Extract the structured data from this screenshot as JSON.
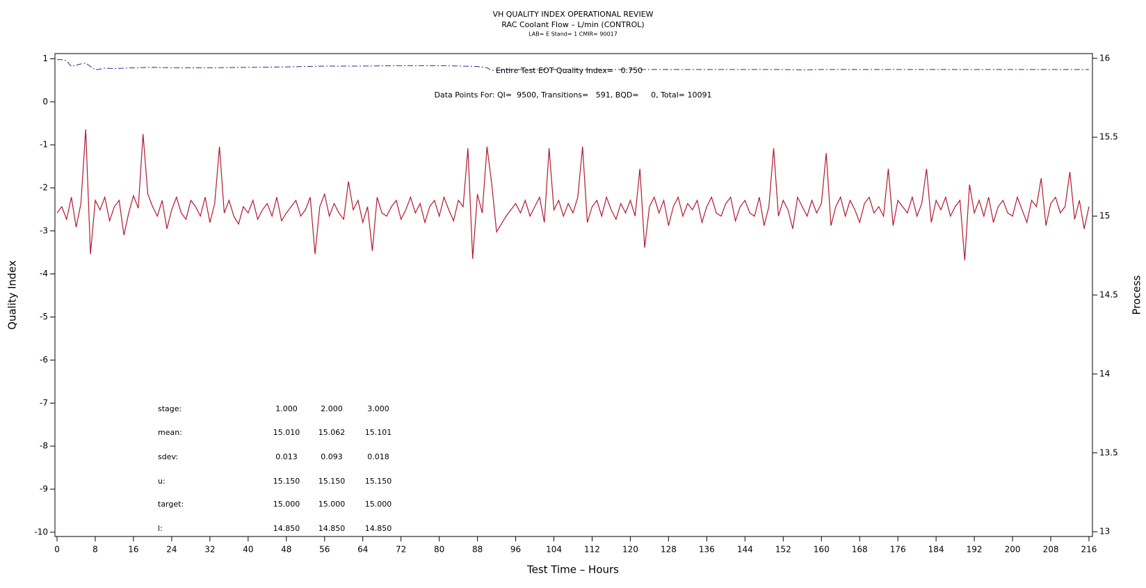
{
  "chart_data": {
    "type": "line",
    "title": "VH QUALITY INDEX OPERATIONAL REVIEW",
    "subtitle": "RAC Coolant Flow – L/min (CONTROL)",
    "subtitle2": "LAB= E Stand= 1 CMIR= 90017",
    "xlabel": "Test Time – Hours",
    "ylabel": "Quality Index",
    "y2label": "Process",
    "xlim": [
      -0.44,
      216.73
    ],
    "xticks": [
      0,
      8,
      16,
      24,
      32,
      40,
      48,
      56,
      64,
      72,
      80,
      88,
      96,
      104,
      112,
      120,
      128,
      136,
      144,
      152,
      160,
      168,
      176,
      184,
      192,
      200,
      208,
      216
    ],
    "ylim": [
      -10.1,
      1.12
    ],
    "yticks": [
      1,
      0,
      -1,
      -2,
      -3,
      -4,
      -5,
      -6,
      -7,
      -8,
      -9,
      -10
    ],
    "y2lim": [
      12.97,
      16.03
    ],
    "y2ticks": [
      13,
      13.5,
      14,
      14.5,
      15,
      15.5,
      16
    ],
    "series": [
      {
        "color": "#2b2b9e",
        "dash": true,
        "x": [
          0,
          1,
          2,
          3,
          4,
          5,
          6,
          7,
          8,
          9,
          10,
          12,
          16,
          20,
          24,
          32,
          40,
          48,
          56,
          64,
          72,
          80,
          88,
          90,
          91,
          96,
          104,
          120,
          144,
          152,
          156,
          160,
          216
        ],
        "values": [
          0.98,
          0.98,
          0.95,
          0.82,
          0.85,
          0.88,
          0.9,
          0.82,
          0.74,
          0.76,
          0.78,
          0.77,
          0.79,
          0.8,
          0.79,
          0.79,
          0.8,
          0.81,
          0.83,
          0.83,
          0.84,
          0.84,
          0.82,
          0.79,
          0.73,
          0.75,
          0.75,
          0.75,
          0.75,
          0.75,
          0.74,
          0.75,
          0.75
        ]
      },
      {
        "color": "#b0182e",
        "axis": "y2",
        "x": [
          0,
          1,
          2,
          3,
          4,
          5,
          6,
          7,
          8,
          9,
          10,
          11,
          12,
          13,
          14,
          15,
          16,
          17,
          18,
          19,
          20,
          21,
          22,
          23,
          24,
          25,
          26,
          27,
          28,
          29,
          30,
          31,
          32,
          33,
          34,
          35,
          36,
          37,
          38,
          39,
          40,
          41,
          42,
          43,
          44,
          45,
          46,
          47,
          48,
          49,
          50,
          51,
          52,
          53,
          54,
          55,
          56,
          57,
          58,
          59,
          60,
          61,
          62,
          63,
          64,
          65,
          66,
          67,
          68,
          69,
          70,
          71,
          72,
          73,
          74,
          75,
          76,
          77,
          78,
          79,
          80,
          81,
          82,
          83,
          84,
          85,
          86,
          87,
          88,
          89,
          90,
          91,
          92,
          93,
          94,
          95,
          96,
          97,
          98,
          99,
          100,
          101,
          102,
          103,
          104,
          105,
          106,
          107,
          108,
          109,
          110,
          111,
          112,
          113,
          114,
          115,
          116,
          117,
          118,
          119,
          120,
          121,
          122,
          123,
          124,
          125,
          126,
          127,
          128,
          129,
          130,
          131,
          132,
          133,
          134,
          135,
          136,
          137,
          138,
          139,
          140,
          141,
          142,
          143,
          144,
          145,
          146,
          147,
          148,
          149,
          150,
          151,
          152,
          153,
          154,
          155,
          156,
          157,
          158,
          159,
          160,
          161,
          162,
          163,
          164,
          165,
          166,
          167,
          168,
          169,
          170,
          171,
          172,
          173,
          174,
          175,
          176,
          177,
          178,
          179,
          180,
          181,
          182,
          183,
          184,
          185,
          186,
          187,
          188,
          189,
          190,
          191,
          192,
          193,
          194,
          195,
          196,
          197,
          198,
          199,
          200,
          201,
          202,
          203,
          204,
          205,
          206,
          207,
          208,
          209,
          210,
          211,
          212,
          213,
          214,
          215,
          216
        ],
        "values": [
          15.02,
          15.06,
          14.98,
          15.12,
          14.93,
          15.08,
          15.55,
          14.76,
          15.1,
          15.04,
          15.12,
          14.97,
          15.06,
          15.1,
          14.88,
          15.02,
          15.13,
          15.05,
          15.52,
          15.14,
          15.06,
          15.0,
          15.1,
          14.92,
          15.04,
          15.12,
          15.02,
          14.98,
          15.1,
          15.06,
          15.0,
          15.12,
          14.96,
          15.08,
          15.44,
          15.02,
          15.1,
          15.0,
          14.95,
          15.06,
          15.02,
          15.1,
          14.98,
          15.04,
          15.08,
          15.0,
          15.12,
          14.97,
          15.02,
          15.06,
          15.1,
          15.0,
          15.04,
          15.12,
          14.76,
          15.06,
          15.14,
          15.0,
          15.08,
          15.02,
          14.98,
          15.22,
          15.04,
          15.1,
          14.96,
          15.06,
          14.78,
          15.12,
          15.02,
          15.0,
          15.06,
          15.1,
          14.98,
          15.04,
          15.12,
          15.02,
          15.08,
          14.96,
          15.06,
          15.1,
          15.0,
          15.12,
          15.04,
          14.97,
          15.1,
          15.06,
          15.43,
          14.73,
          15.14,
          15.02,
          15.44,
          15.2,
          14.9,
          14.95,
          15.0,
          15.04,
          15.08,
          15.02,
          15.1,
          15.0,
          15.06,
          15.12,
          14.96,
          15.43,
          15.04,
          15.1,
          15.0,
          15.08,
          15.02,
          15.12,
          15.44,
          14.96,
          15.06,
          15.1,
          15.0,
          15.12,
          15.04,
          14.98,
          15.08,
          15.02,
          15.1,
          15.0,
          15.3,
          14.8,
          15.06,
          15.12,
          15.02,
          15.1,
          14.94,
          15.06,
          15.12,
          15.0,
          15.08,
          15.04,
          15.1,
          14.96,
          15.06,
          15.12,
          15.02,
          15.0,
          15.08,
          15.12,
          14.97,
          15.06,
          15.1,
          15.02,
          15.0,
          15.12,
          14.94,
          15.06,
          15.43,
          15.0,
          15.1,
          15.04,
          14.92,
          15.12,
          15.06,
          15.0,
          15.1,
          15.02,
          15.08,
          15.4,
          14.94,
          15.06,
          15.12,
          15.0,
          15.1,
          15.04,
          14.96,
          15.08,
          15.12,
          15.02,
          15.06,
          15.0,
          15.3,
          14.94,
          15.1,
          15.06,
          15.02,
          15.12,
          15.0,
          15.08,
          15.3,
          14.96,
          15.1,
          15.04,
          15.12,
          15.0,
          15.06,
          15.1,
          14.72,
          15.2,
          15.02,
          15.1,
          15.0,
          15.12,
          14.96,
          15.06,
          15.1,
          15.02,
          15.0,
          15.12,
          15.04,
          14.96,
          15.1,
          15.06,
          15.24,
          14.94,
          15.08,
          15.12,
          15.02,
          15.06,
          15.28,
          14.98,
          15.1,
          14.92,
          15.06
        ]
      }
    ],
    "annotations": [
      "Entire Test EOT Quality Index=   0.750",
      "Data Points For: QI=  9500, Transitions=   591, BQD=     0, Total= 10091"
    ],
    "stats_table": {
      "rows": [
        [
          "stage:",
          "1.000",
          "2.000",
          "3.000"
        ],
        [
          "mean:",
          "15.010",
          "15.062",
          "15.101"
        ],
        [
          "sdev:",
          "0.013",
          "0.093",
          "0.018"
        ],
        [
          "u:",
          "15.150",
          "15.150",
          "15.150"
        ],
        [
          "target:",
          "15.000",
          "15.000",
          "15.000"
        ],
        [
          "l:",
          "14.850",
          "14.850",
          "14.850"
        ]
      ]
    }
  }
}
